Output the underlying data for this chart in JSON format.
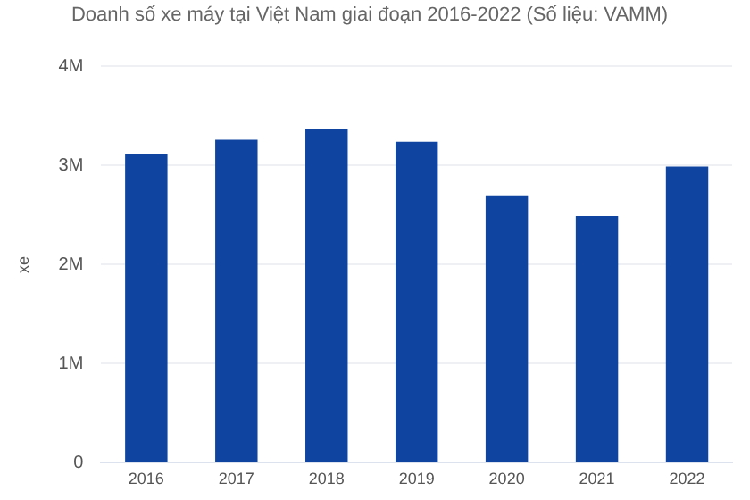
{
  "chart_data": {
    "type": "bar",
    "title": "Doanh số xe máy tại Việt Nam giai đoạn 2016-2022 (Số liệu: VAMM)",
    "ylabel": "xe",
    "categories": [
      "2016",
      "2017",
      "2018",
      "2019",
      "2020",
      "2021",
      "2022"
    ],
    "values": [
      3120000,
      3260000,
      3370000,
      3240000,
      2700000,
      2490000,
      2990000
    ],
    "color": "#0f44a0",
    "ylim": [
      0,
      4000000
    ],
    "yticks": [
      {
        "value": 0,
        "label": "0"
      },
      {
        "value": 1000000,
        "label": "1M"
      },
      {
        "value": 2000000,
        "label": "2M"
      },
      {
        "value": 3000000,
        "label": "3M"
      },
      {
        "value": 4000000,
        "label": "4M"
      }
    ],
    "grid": "y"
  }
}
